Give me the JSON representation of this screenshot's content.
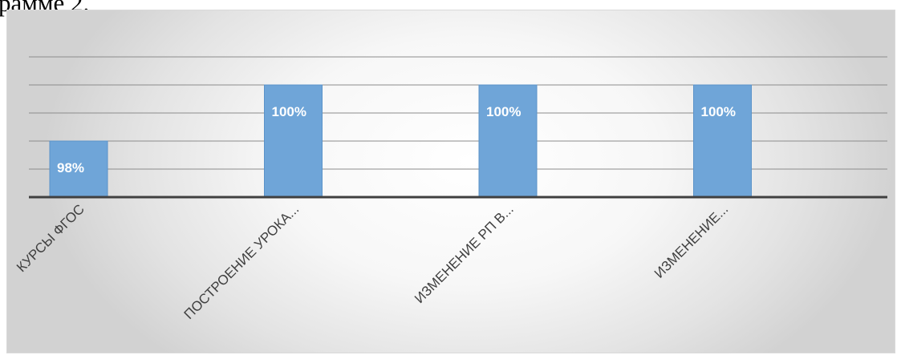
{
  "page": {
    "text": "рамме 2."
  },
  "chart_data": {
    "type": "bar",
    "categories": [
      "КУРСЫ ФГОС",
      "ПОСТРОЕНИЕ УРОКА...",
      "ИЗМЕНЕНИЕ РП В...",
      "ИЗМЕНЕНИЕ..."
    ],
    "values": [
      98,
      100,
      100,
      100
    ],
    "data_labels": [
      "98%",
      "100%",
      "100%",
      "100%"
    ],
    "ylim": [
      96,
      101
    ],
    "grid": true,
    "legend": "none",
    "bar_color": "#6fa5d8",
    "bar_edge_color": "#5b93c9",
    "label_color": "#ffffff",
    "axis_color": "#404040",
    "gridline_color": "#8c8c8c",
    "tick_label_color": "#404040"
  }
}
